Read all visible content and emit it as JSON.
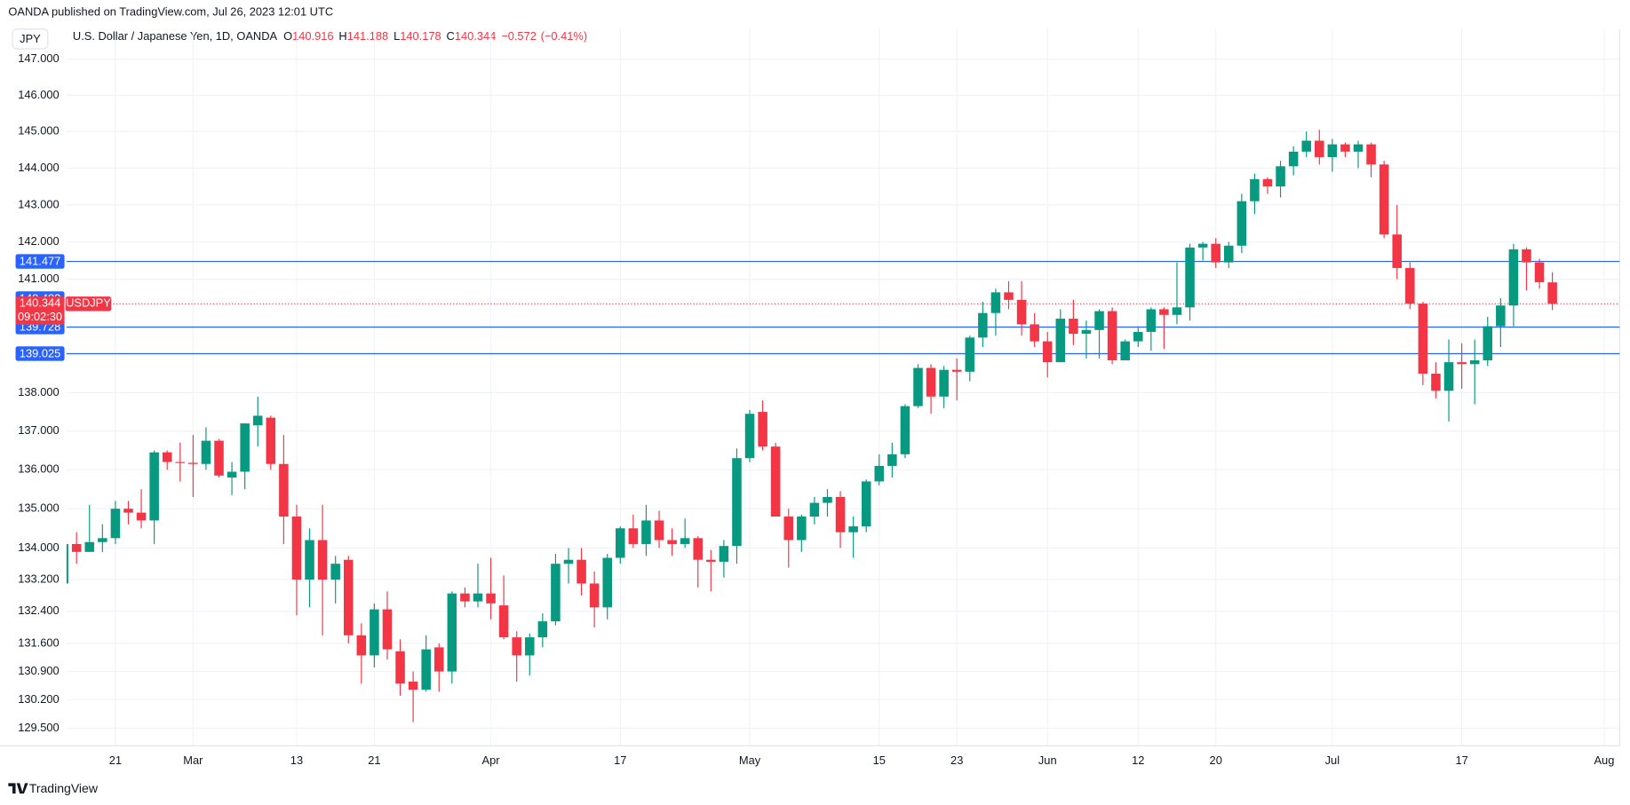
{
  "header": {
    "published": "OANDA published on TradingView.com, Jul 26, 2023 12:01 UTC",
    "currency_button": "JPY"
  },
  "chart_data": {
    "type": "candlestick",
    "title": "U.S. Dollar / Japanese Yen, 1D, OANDA",
    "ohlc_labels": [
      "O",
      "H",
      "L",
      "C"
    ],
    "change": {
      "value": -0.572,
      "label": "−0.572"
    },
    "change_pct": {
      "value": -0.41,
      "label": "(−0.41%)"
    },
    "x": [
      "2023-02-15",
      "2023-02-16",
      "2023-02-17",
      "2023-02-20",
      "2023-02-21",
      "2023-02-22",
      "2023-02-23",
      "2023-02-24",
      "2023-02-27",
      "2023-02-28",
      "2023-03-01",
      "2023-03-02",
      "2023-03-03",
      "2023-03-06",
      "2023-03-07",
      "2023-03-08",
      "2023-03-09",
      "2023-03-10",
      "2023-03-13",
      "2023-03-14",
      "2023-03-15",
      "2023-03-16",
      "2023-03-17",
      "2023-03-20",
      "2023-03-21",
      "2023-03-22",
      "2023-03-23",
      "2023-03-24",
      "2023-03-27",
      "2023-03-28",
      "2023-03-29",
      "2023-03-30",
      "2023-03-31",
      "2023-04-03",
      "2023-04-04",
      "2023-04-05",
      "2023-04-06",
      "2023-04-07",
      "2023-04-10",
      "2023-04-11",
      "2023-04-12",
      "2023-04-13",
      "2023-04-14",
      "2023-04-17",
      "2023-04-18",
      "2023-04-19",
      "2023-04-20",
      "2023-04-21",
      "2023-04-24",
      "2023-04-25",
      "2023-04-26",
      "2023-04-27",
      "2023-04-28",
      "2023-05-01",
      "2023-05-02",
      "2023-05-03",
      "2023-05-04",
      "2023-05-05",
      "2023-05-08",
      "2023-05-09",
      "2023-05-10",
      "2023-05-11",
      "2023-05-12",
      "2023-05-15",
      "2023-05-16",
      "2023-05-17",
      "2023-05-18",
      "2023-05-19",
      "2023-05-22",
      "2023-05-23",
      "2023-05-24",
      "2023-05-25",
      "2023-05-26",
      "2023-05-29",
      "2023-05-30",
      "2023-05-31",
      "2023-06-01",
      "2023-06-02",
      "2023-06-05",
      "2023-06-06",
      "2023-06-07",
      "2023-06-08",
      "2023-06-09",
      "2023-06-12",
      "2023-06-13",
      "2023-06-14",
      "2023-06-15",
      "2023-06-16",
      "2023-06-19",
      "2023-06-20",
      "2023-06-21",
      "2023-06-22",
      "2023-06-23",
      "2023-06-26",
      "2023-06-27",
      "2023-06-28",
      "2023-06-29",
      "2023-06-30",
      "2023-07-03",
      "2023-07-04",
      "2023-07-05",
      "2023-07-06",
      "2023-07-07",
      "2023-07-10",
      "2023-07-11",
      "2023-07-12",
      "2023-07-13",
      "2023-07-14",
      "2023-07-17",
      "2023-07-18",
      "2023-07-19",
      "2023-07-20",
      "2023-07-21",
      "2023-07-24",
      "2023-07-25",
      "2023-07-26"
    ],
    "series": [
      {
        "name": "USDJPY",
        "up_color": "#089981",
        "down_color": "#f23645",
        "open": [
          133.1,
          134.1,
          133.9,
          134.15,
          134.25,
          135.0,
          134.9,
          134.7,
          136.45,
          136.2,
          136.18,
          136.15,
          136.75,
          135.8,
          135.95,
          137.15,
          137.35,
          136.15,
          134.8,
          133.2,
          134.2,
          133.2,
          133.7,
          131.8,
          131.3,
          132.45,
          131.4,
          130.65,
          130.45,
          131.5,
          130.9,
          132.85,
          132.65,
          132.85,
          132.55,
          131.75,
          131.3,
          131.75,
          132.15,
          133.6,
          133.7,
          133.1,
          132.5,
          133.75,
          134.5,
          134.1,
          134.7,
          134.2,
          134.1,
          134.25,
          133.7,
          133.65,
          134.05,
          136.3,
          137.5,
          136.6,
          134.8,
          134.2,
          134.8,
          135.15,
          135.3,
          134.4,
          134.55,
          135.7,
          136.1,
          136.4,
          137.65,
          138.65,
          137.9,
          138.6,
          138.55,
          139.45,
          140.1,
          140.65,
          140.45,
          139.8,
          139.35,
          138.8,
          139.95,
          139.55,
          139.65,
          140.15,
          138.85,
          139.35,
          139.6,
          140.2,
          140.05,
          140.25,
          141.85,
          141.95,
          141.45,
          141.9,
          143.1,
          143.7,
          143.5,
          144.05,
          144.45,
          144.75,
          144.3,
          144.65,
          144.45,
          144.65,
          144.1,
          142.2,
          141.3,
          140.35,
          138.5,
          138.05,
          138.8,
          138.75,
          138.85,
          139.75,
          140.3,
          141.8,
          141.45,
          140.916
        ],
        "high": [
          134.35,
          134.4,
          135.1,
          134.6,
          135.2,
          135.2,
          135.5,
          136.5,
          136.5,
          136.7,
          136.9,
          137.1,
          136.8,
          136.2,
          137.2,
          137.9,
          137.4,
          136.9,
          135.1,
          134.5,
          135.1,
          133.8,
          133.8,
          132.1,
          132.6,
          132.9,
          131.7,
          130.9,
          131.8,
          131.6,
          132.9,
          133.0,
          133.6,
          133.75,
          133.3,
          131.9,
          131.85,
          132.35,
          133.85,
          134.0,
          134.0,
          133.4,
          133.85,
          134.55,
          134.85,
          135.1,
          134.95,
          134.5,
          134.75,
          134.3,
          133.95,
          134.2,
          136.55,
          137.55,
          137.8,
          136.7,
          135.0,
          134.85,
          135.3,
          135.5,
          135.45,
          134.8,
          135.75,
          136.4,
          136.7,
          137.7,
          138.75,
          138.75,
          138.7,
          138.9,
          139.5,
          140.4,
          140.75,
          140.95,
          140.95,
          140.1,
          139.6,
          140.2,
          140.45,
          139.9,
          140.2,
          140.25,
          139.4,
          139.75,
          140.25,
          140.25,
          141.45,
          141.95,
          142.0,
          142.1,
          142.0,
          143.3,
          143.85,
          143.75,
          144.2,
          144.6,
          145.0,
          145.05,
          144.8,
          144.7,
          144.75,
          144.7,
          144.2,
          143.0,
          141.45,
          140.4,
          138.8,
          139.4,
          139.3,
          139.4,
          140.0,
          140.5,
          141.95,
          141.85,
          141.55,
          141.188
        ],
        "low": [
          132.9,
          133.6,
          133.9,
          133.9,
          134.1,
          134.6,
          134.5,
          134.1,
          136.0,
          135.7,
          135.3,
          136.0,
          135.8,
          135.35,
          135.5,
          136.6,
          136.0,
          134.1,
          132.3,
          132.5,
          131.8,
          132.6,
          131.6,
          130.6,
          131.0,
          131.2,
          130.3,
          129.65,
          130.4,
          130.4,
          130.6,
          132.5,
          132.5,
          132.2,
          131.7,
          130.65,
          130.8,
          131.5,
          132.05,
          133.1,
          132.8,
          132.0,
          132.2,
          133.6,
          134.0,
          133.8,
          134.0,
          133.8,
          134.0,
          133.0,
          132.9,
          133.25,
          133.6,
          136.2,
          136.5,
          134.8,
          133.5,
          133.9,
          134.6,
          134.8,
          134.0,
          133.75,
          134.4,
          135.6,
          135.8,
          136.3,
          137.6,
          137.45,
          137.6,
          137.8,
          138.3,
          139.2,
          139.5,
          140.2,
          139.5,
          139.2,
          138.4,
          138.8,
          139.25,
          138.9,
          138.9,
          138.75,
          138.85,
          139.2,
          139.1,
          139.15,
          139.8,
          139.9,
          141.5,
          141.3,
          141.3,
          141.7,
          142.75,
          143.3,
          143.2,
          143.8,
          144.3,
          144.1,
          143.9,
          144.3,
          144.0,
          143.75,
          142.1,
          141.0,
          140.2,
          138.2,
          137.85,
          137.25,
          138.1,
          137.7,
          138.7,
          139.2,
          139.75,
          140.7,
          140.75,
          140.178
        ],
        "close": [
          134.1,
          133.9,
          134.15,
          134.25,
          135.0,
          134.9,
          134.7,
          136.45,
          136.2,
          136.18,
          136.15,
          136.75,
          135.85,
          135.95,
          137.2,
          137.4,
          136.15,
          134.8,
          133.2,
          134.2,
          133.2,
          133.6,
          131.8,
          131.3,
          132.45,
          131.45,
          130.6,
          130.45,
          131.45,
          130.9,
          132.85,
          132.65,
          132.85,
          132.6,
          131.75,
          131.3,
          131.75,
          132.15,
          133.6,
          133.7,
          133.1,
          132.5,
          133.75,
          134.5,
          134.1,
          134.7,
          134.2,
          134.1,
          134.25,
          133.7,
          133.65,
          134.05,
          136.3,
          137.45,
          136.6,
          134.8,
          134.2,
          134.8,
          135.15,
          135.3,
          134.4,
          134.55,
          135.7,
          136.1,
          136.4,
          137.65,
          138.65,
          137.9,
          138.6,
          138.55,
          139.45,
          140.1,
          140.65,
          140.45,
          139.8,
          139.35,
          138.8,
          139.95,
          139.55,
          139.65,
          140.15,
          138.85,
          139.35,
          139.6,
          140.2,
          140.05,
          140.25,
          141.85,
          141.95,
          141.45,
          141.9,
          143.1,
          143.7,
          143.5,
          144.05,
          144.45,
          144.75,
          144.3,
          144.65,
          144.45,
          144.65,
          144.1,
          142.2,
          141.3,
          140.35,
          138.5,
          138.05,
          138.8,
          138.75,
          138.85,
          139.75,
          140.3,
          141.8,
          141.45,
          140.92,
          140.344
        ]
      }
    ],
    "ylim": [
      129.07,
      147.35
    ],
    "log_scale": true,
    "yticks": [
      {
        "value": 147,
        "label": "147.000"
      },
      {
        "value": 146,
        "label": "146.000"
      },
      {
        "value": 145,
        "label": "145.000"
      },
      {
        "value": 144,
        "label": "144.000"
      },
      {
        "value": 143,
        "label": "143.000"
      },
      {
        "value": 142,
        "label": "142.000"
      },
      {
        "value": 141,
        "label": "141.000"
      },
      {
        "value": 138,
        "label": "138.000"
      },
      {
        "value": 137,
        "label": "137.000"
      },
      {
        "value": 136,
        "label": "136.000"
      },
      {
        "value": 135,
        "label": "135.000"
      },
      {
        "value": 134,
        "label": "134.000"
      },
      {
        "value": 133.2,
        "label": "133.200"
      },
      {
        "value": 132.4,
        "label": "132.400"
      },
      {
        "value": 131.6,
        "label": "131.600"
      },
      {
        "value": 130.9,
        "label": "130.900"
      },
      {
        "value": 130.2,
        "label": "130.200"
      },
      {
        "value": 129.5,
        "label": "129.500"
      }
    ],
    "xlim": [
      "2023-02-15",
      "2023-08-02"
    ],
    "xticks": [
      {
        "value": "2023-02-21",
        "label": "21"
      },
      {
        "value": "2023-03-01",
        "label": "Mar"
      },
      {
        "value": "2023-03-13",
        "label": "13"
      },
      {
        "value": "2023-03-21",
        "label": "21"
      },
      {
        "value": "2023-04-03",
        "label": "Apr"
      },
      {
        "value": "2023-04-17",
        "label": "17"
      },
      {
        "value": "2023-05-01",
        "label": "May"
      },
      {
        "value": "2023-05-15",
        "label": "15"
      },
      {
        "value": "2023-05-23",
        "label": "23"
      },
      {
        "value": "2023-06-01",
        "label": "Jun"
      },
      {
        "value": "2023-06-12",
        "label": "12"
      },
      {
        "value": "2023-06-20",
        "label": "20"
      },
      {
        "value": "2023-07-03",
        "label": "Jul"
      },
      {
        "value": "2023-07-17",
        "label": "17"
      },
      {
        "value": "2023-08-01",
        "label": "Aug"
      }
    ],
    "grid": true,
    "level_color": "#2962ff",
    "levels": [
      {
        "value": 141.477,
        "line": true
      },
      {
        "value": 140.482,
        "line": false
      },
      {
        "value": 139.728,
        "line": true
      },
      {
        "value": 139.025,
        "line": true
      }
    ],
    "countdown": "09:02:30"
  },
  "footer": {
    "brand": "TradingView"
  }
}
